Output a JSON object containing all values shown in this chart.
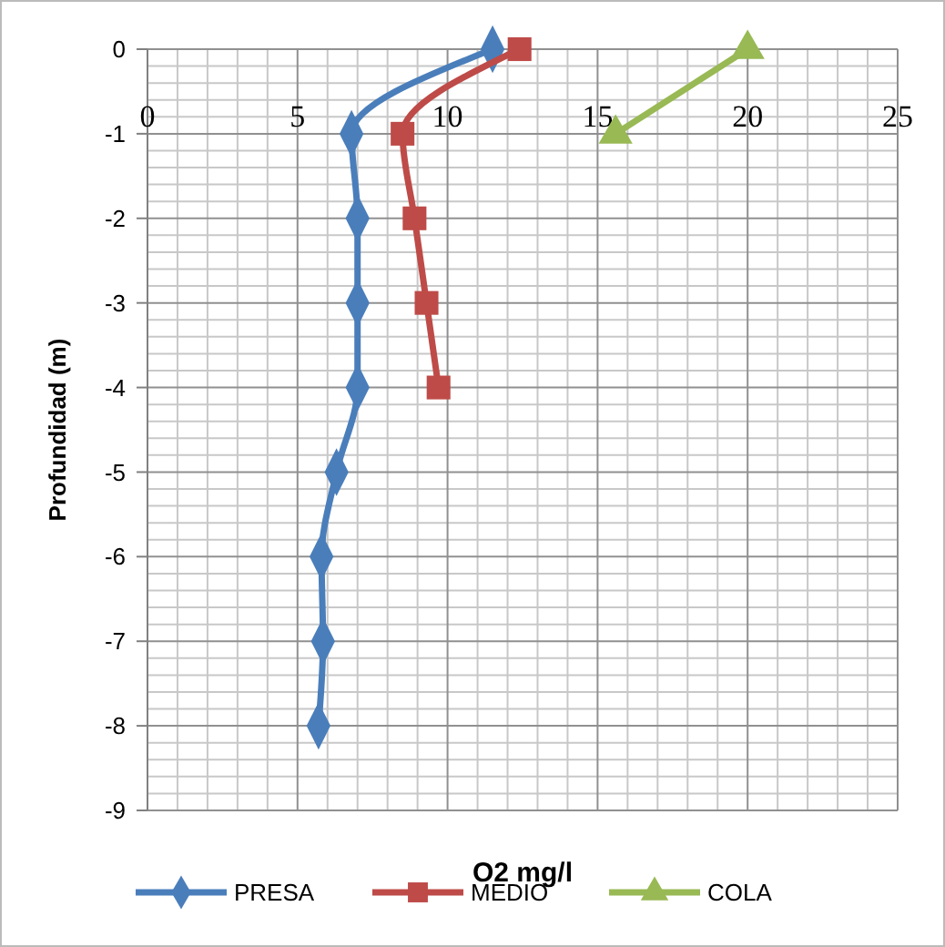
{
  "chart_data": {
    "type": "line",
    "xlabel": "O2 mg/l",
    "ylabel": "Profundidad (m)",
    "xlim": [
      0,
      25
    ],
    "xticks": [
      0,
      5,
      10,
      15,
      20,
      25
    ],
    "ylim": [
      -9,
      0
    ],
    "yticks": [
      -9,
      -8,
      -7,
      -6,
      -5,
      -4,
      -3,
      -2,
      -1,
      0
    ],
    "grid": true,
    "legend": "bottom",
    "line_style": "solid",
    "series": [
      {
        "name": "PRESA",
        "color": "#4a7ebb",
        "marker": "diamond",
        "x": [
          11.5,
          6.8,
          7.0,
          7.0,
          7.0,
          6.3,
          5.8,
          5.85,
          5.7
        ],
        "values": [
          0,
          -1,
          -2,
          -3,
          -4,
          -5,
          -6,
          -7,
          -8
        ]
      },
      {
        "name": "MEDIO",
        "color": "#be4b48",
        "marker": "square",
        "x": [
          12.4,
          8.5,
          8.9,
          9.3,
          9.7
        ],
        "values": [
          0,
          -1,
          -2,
          -3,
          -4
        ]
      },
      {
        "name": "COLA",
        "color": "#98b954",
        "marker": "triangle",
        "x": [
          20.0,
          15.6
        ],
        "values": [
          0,
          -1
        ]
      }
    ]
  }
}
